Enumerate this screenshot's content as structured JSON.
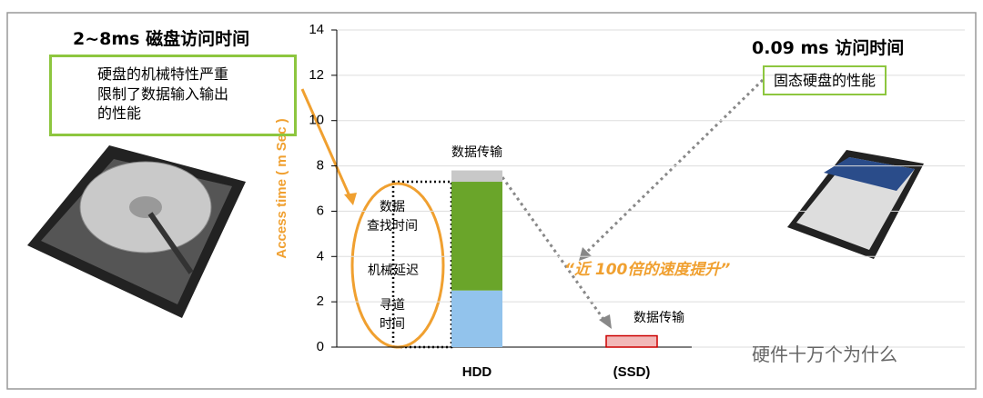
{
  "chart_data": {
    "type": "bar",
    "stacked": true,
    "y_label": "Access time ( m Sec )",
    "annotations": [
      "2~8ms 磁盘访问时间",
      "硬盘的机械特性严重\n限制了数据输入输出\n的性能",
      "0.09 ms 访问时间",
      "固态硬盘的性能",
      "“近 100倍的速度提升”",
      "数据\n查找时间",
      "硬件十万个为什么"
    ],
    "categories": [
      "HDD",
      "(SSD)"
    ],
    "series": [
      {
        "name": "寻道\n时间",
        "color": "#92c3ec",
        "values": [
          2.5,
          null
        ]
      },
      {
        "name": "机械延迟",
        "color": "#6aa52a",
        "values": [
          4.8,
          null
        ]
      },
      {
        "name": "数据传输",
        "colors": [
          "#c8c8c8",
          "#f2b8b8"
        ],
        "values": [
          0.5,
          0.5
        ]
      }
    ],
    "ylim": [
      0,
      14
    ],
    "yticks": [
      0,
      2,
      4,
      6,
      8,
      10,
      12,
      14
    ],
    "grid": true
  }
}
